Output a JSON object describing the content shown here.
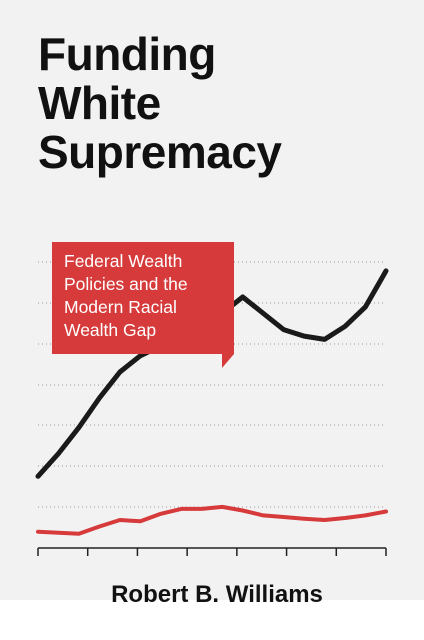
{
  "book": {
    "title_lines": [
      "Funding",
      "White",
      "Supremacy"
    ],
    "subtitle_lines": [
      "Federal Wealth",
      "Policies and the",
      "Modern Racial",
      "Wealth Gap"
    ],
    "author": "Robert B. Williams"
  },
  "colors": {
    "background": "#f2f2f2",
    "title": "#111111",
    "accent": "#d63a3a",
    "black_line": "#1a1a1a",
    "red_line": "#d63a3a",
    "gridline": "#9a9a9a"
  },
  "chart_data": {
    "type": "line",
    "title": "",
    "xlabel": "",
    "ylabel": "",
    "grid": true,
    "x": [
      0,
      1,
      2,
      3,
      4,
      5,
      6,
      7,
      8,
      9,
      10,
      11,
      12,
      13,
      14,
      15,
      16,
      17
    ],
    "ylim": [
      0,
      100
    ],
    "series": [
      {
        "values": [
          22,
          29,
          37,
          46,
          54,
          59,
          62,
          63,
          67,
          72,
          77,
          72,
          67,
          65,
          64,
          68,
          74,
          85
        ],
        "color": "#1a1a1a"
      },
      {
        "values": [
          5,
          4.7,
          4.4,
          6.6,
          8.6,
          8.2,
          10.5,
          12,
          12,
          12.6,
          11.5,
          10,
          9.5,
          9,
          8.6,
          9.2,
          10,
          11.2
        ],
        "color": "#d63a3a"
      }
    ]
  }
}
